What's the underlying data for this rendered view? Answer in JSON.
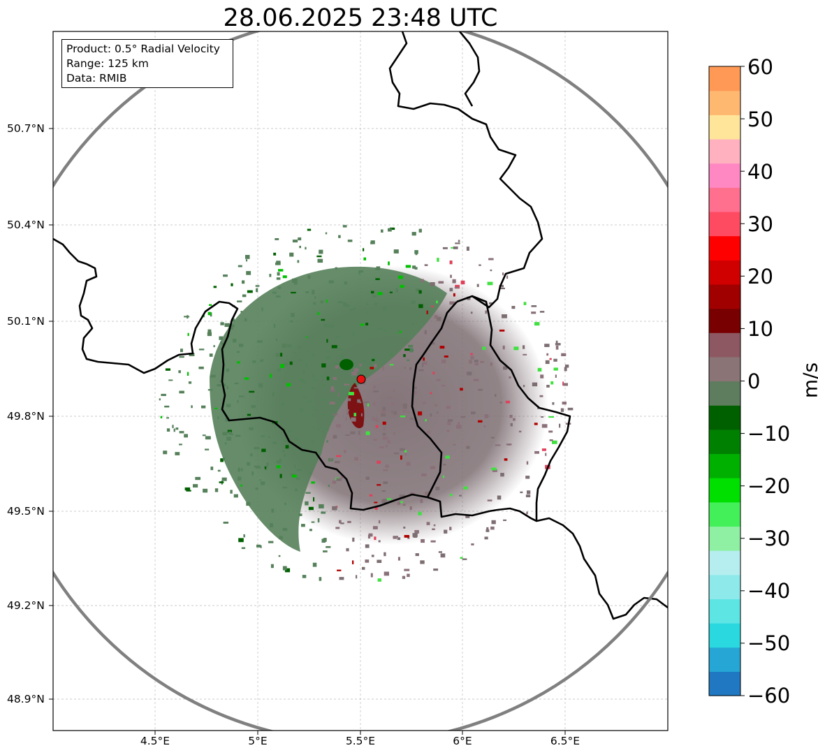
{
  "title": "28.06.2025 23:48 UTC",
  "info": {
    "product": "Product: 0.5° Radial Velocity",
    "range": "Range: 125 km",
    "data": "Data: RMIB"
  },
  "lat_ticks": [
    "50.7°N",
    "50.4°N",
    "50.1°N",
    "49.8°N",
    "49.5°N",
    "49.2°N",
    "48.9°N"
  ],
  "lon_ticks": [
    "4.5°E",
    "5°E",
    "5.5°E",
    "6°E",
    "6.5°E"
  ],
  "colorbar": {
    "label": "m/s",
    "ticks": [
      "60",
      "50",
      "40",
      "30",
      "20",
      "10",
      "0",
      "−10",
      "−20",
      "−30",
      "−40",
      "−50",
      "−60"
    ],
    "range": [
      -60,
      60
    ],
    "colors": [
      "#1f78c1",
      "#26a6d4",
      "#2ad8e0",
      "#5ce5e3",
      "#8ee9ea",
      "#b6eef0",
      "#8ff0a4",
      "#43f05a",
      "#00e000",
      "#00b000",
      "#008000",
      "#006000",
      "#5e7d5e",
      "#8a7475",
      "#8e5862",
      "#780000",
      "#a00000",
      "#d00000",
      "#ff0000",
      "#ff4b62",
      "#ff6f8e",
      "#ff88c3",
      "#ffb1c0",
      "#ffe59a",
      "#ffb870",
      "#ff9955"
    ]
  },
  "radar_site": {
    "lon": 5.505,
    "lat": 49.914,
    "color": "#e61010"
  },
  "map_extent": {
    "lon": [
      4.0,
      7.0
    ],
    "lat": [
      48.8,
      51.0
    ]
  },
  "colors": {
    "border": "#000000",
    "range_ring": "#808080",
    "gridline": "#bbbbbb",
    "approach_green": "#55805a",
    "recede_mauve": "#8a7078"
  }
}
